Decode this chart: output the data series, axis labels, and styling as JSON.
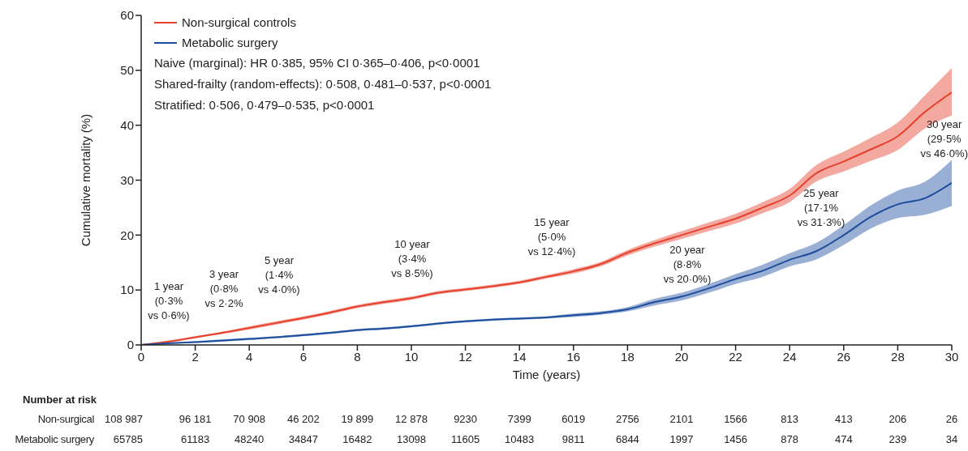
{
  "chart_data": {
    "type": "line",
    "xlabel": "Time (years)",
    "ylabel": "Cumulative mortality (%)",
    "xlim": [
      0,
      30
    ],
    "xticks": [
      0,
      2,
      4,
      6,
      8,
      10,
      12,
      14,
      16,
      18,
      20,
      22,
      24,
      26,
      28,
      30
    ],
    "ylim": [
      0,
      60
    ],
    "yticks": [
      0,
      10,
      20,
      30,
      40,
      50,
      60
    ],
    "grid": false,
    "legend": "top left",
    "marker": "none",
    "line_style": "solid",
    "x": [
      0,
      1,
      2,
      3,
      4,
      5,
      6,
      7,
      8,
      9,
      10,
      11,
      12,
      13,
      14,
      15,
      16,
      17,
      18,
      19,
      20,
      21,
      22,
      23,
      24,
      25,
      26,
      27,
      28,
      29,
      30
    ],
    "series": [
      {
        "name": "Non-surgical controls",
        "color": "#e5412d",
        "values": [
          0,
          0.6,
          1.4,
          2.2,
          3.1,
          4.0,
          4.9,
          5.9,
          7.0,
          7.8,
          8.5,
          9.5,
          10.1,
          10.7,
          11.4,
          12.4,
          13.4,
          14.7,
          16.8,
          18.5,
          20.0,
          21.5,
          23.0,
          25.0,
          27.2,
          31.3,
          33.4,
          35.6,
          38.0,
          42.4,
          46.0
        ],
        "lower": [
          0,
          0.4,
          1.2,
          2.0,
          2.8,
          3.7,
          4.6,
          5.6,
          6.7,
          7.5,
          8.2,
          9.2,
          9.8,
          10.4,
          11.1,
          12.1,
          13.0,
          14.3,
          16.3,
          17.9,
          19.3,
          20.7,
          22.1,
          24.0,
          26.0,
          29.8,
          31.6,
          33.5,
          35.5,
          39.4,
          41.8
        ],
        "upper": [
          0,
          0.8,
          1.6,
          2.4,
          3.4,
          4.3,
          5.2,
          6.2,
          7.3,
          8.1,
          8.8,
          9.8,
          10.4,
          11.0,
          11.7,
          12.7,
          13.8,
          15.1,
          17.3,
          19.1,
          20.7,
          22.3,
          23.9,
          26.0,
          28.4,
          32.8,
          35.2,
          37.7,
          40.5,
          45.4,
          50.4
        ]
      },
      {
        "name": "Metabolic surgery",
        "color": "#1d4d9e",
        "values": [
          0,
          0.3,
          0.5,
          0.8,
          1.1,
          1.4,
          1.8,
          2.2,
          2.7,
          3.0,
          3.4,
          3.9,
          4.3,
          4.6,
          4.8,
          5.0,
          5.4,
          5.8,
          6.5,
          7.8,
          8.8,
          10.3,
          12.0,
          13.5,
          15.5,
          17.1,
          20.0,
          23.3,
          25.6,
          26.7,
          29.5
        ],
        "lower": [
          0,
          0.2,
          0.4,
          0.6,
          0.9,
          1.2,
          1.6,
          2.0,
          2.5,
          2.8,
          3.2,
          3.7,
          4.1,
          4.4,
          4.6,
          4.8,
          5.1,
          5.5,
          6.1,
          7.2,
          8.1,
          9.5,
          11.1,
          12.4,
          14.3,
          15.6,
          18.2,
          21.2,
          23.1,
          23.7,
          25.3
        ],
        "upper": [
          0,
          0.4,
          0.7,
          1.0,
          1.3,
          1.6,
          2.0,
          2.4,
          2.9,
          3.2,
          3.6,
          4.1,
          4.5,
          4.8,
          5.0,
          5.2,
          5.7,
          6.1,
          6.9,
          8.4,
          9.5,
          11.1,
          12.9,
          14.6,
          16.7,
          18.6,
          21.8,
          25.4,
          28.1,
          29.7,
          33.7
        ]
      }
    ],
    "annotations": [
      "Naive (marginal): HR 0·385, 95% CI 0·365–0·406, p<0·0001",
      "Shared-frailty (random-effects): 0·508, 0·481–0·537, p<0·0001",
      "Stratified: 0·506, 0·479–0·535, p<0·0001",
      "1 year (0·3% vs 0·6%)",
      "3 year (0·8% vs 2·2%",
      "5 year (1·4% vs 4·0%)",
      "10 year (3·4% vs 8·5%)",
      "15 year (5·0% vs 12·4%)",
      "20 year (8·8% vs 20·0%)",
      "25 year (17·1% vs 31·3%)",
      "30 year (29·5% vs 46·0%)",
      "Number at risk",
      "Non-surgical",
      "108 987",
      "96 181",
      "70 908",
      "46 202",
      "19 899",
      "12 878",
      "9230",
      "7399",
      "6019",
      "2756",
      "2101",
      "1566",
      "813",
      "413",
      "206",
      "26",
      "Metabolic surgery",
      "65785",
      "61183",
      "48240",
      "34847",
      "16482",
      "13098",
      "11605",
      "10483",
      "9811",
      "6844",
      "1997",
      "1456",
      "878",
      "474",
      "239",
      "34"
    ]
  }
}
